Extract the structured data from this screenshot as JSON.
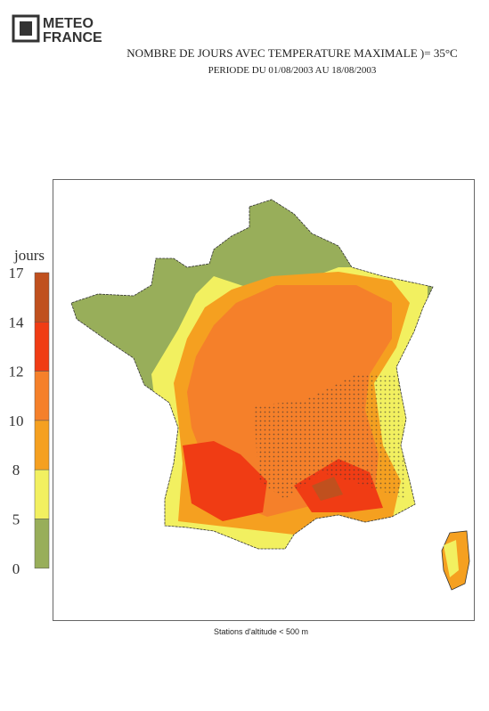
{
  "header": {
    "logo": [
      "METEO",
      "FRANCE"
    ],
    "title": "NOMBRE DE JOURS AVEC TEMPERATURE MAXIMALE )= 35°C",
    "subtitle": "PERIODE DU 01/08/2003 AU 18/08/2003"
  },
  "legend": {
    "title": "jours",
    "ticks": [
      17,
      14,
      12,
      10,
      8,
      5,
      0
    ],
    "colors": [
      "#c0501e",
      "#f03c14",
      "#f5802a",
      "#f5a020",
      "#f2f060",
      "#98ae5a"
    ]
  },
  "footnote": "Stations d'altitude < 500 m"
}
